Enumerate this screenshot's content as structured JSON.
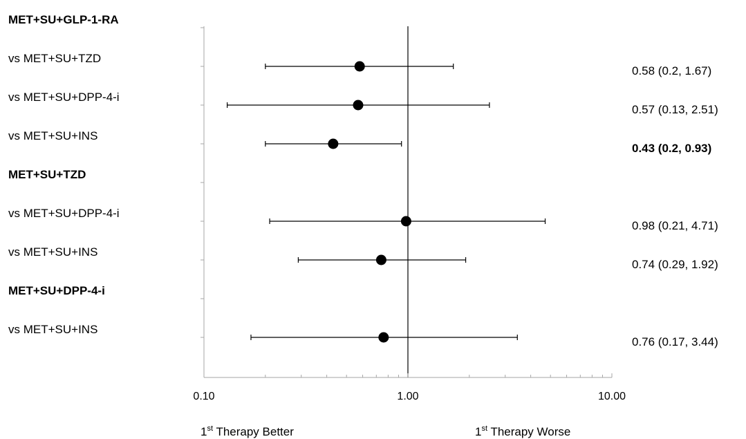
{
  "chart_data": {
    "type": "forest",
    "x_scale": "log",
    "xlim": [
      0.1,
      10
    ],
    "x_ticks": [
      {
        "value": 0.1,
        "label": "0.10"
      },
      {
        "value": 1,
        "label": "1.00"
      },
      {
        "value": 10,
        "label": "10.00"
      }
    ],
    "reference_line": 1,
    "direction_labels": {
      "left": {
        "prefix": "1",
        "sup": "st",
        "text": " Therapy Better"
      },
      "right": {
        "prefix": "1",
        "sup": "st",
        "text": " Therapy Worse"
      }
    },
    "rows": [
      {
        "kind": "group",
        "label": "MET+SU+GLP-1-RA"
      },
      {
        "kind": "comparison",
        "label": "vs MET+SU+TZD",
        "estimate": 0.58,
        "lower": 0.2,
        "upper": 1.67,
        "ci_text": "0.58 (0.2, 1.67)",
        "bold": false
      },
      {
        "kind": "comparison",
        "label": "vs MET+SU+DPP-4-i",
        "estimate": 0.57,
        "lower": 0.13,
        "upper": 2.51,
        "ci_text": "0.57 (0.13, 2.51)",
        "bold": false
      },
      {
        "kind": "comparison",
        "label": "vs MET+SU+INS",
        "estimate": 0.43,
        "lower": 0.2,
        "upper": 0.93,
        "ci_text": "0.43 (0.2, 0.93)",
        "bold": true
      },
      {
        "kind": "group",
        "label": "MET+SU+TZD"
      },
      {
        "kind": "comparison",
        "label": "vs MET+SU+DPP-4-i",
        "estimate": 0.98,
        "lower": 0.21,
        "upper": 4.71,
        "ci_text": "0.98 (0.21, 4.71)",
        "bold": false
      },
      {
        "kind": "comparison",
        "label": "vs MET+SU+INS",
        "estimate": 0.74,
        "lower": 0.29,
        "upper": 1.92,
        "ci_text": "0.74 (0.29, 1.92)",
        "bold": false
      },
      {
        "kind": "group",
        "label": "MET+SU+DPP-4-i"
      },
      {
        "kind": "comparison",
        "label": "vs MET+SU+INS",
        "estimate": 0.76,
        "lower": 0.17,
        "upper": 3.44,
        "ci_text": "0.76 (0.17, 3.44)",
        "bold": false
      }
    ]
  }
}
